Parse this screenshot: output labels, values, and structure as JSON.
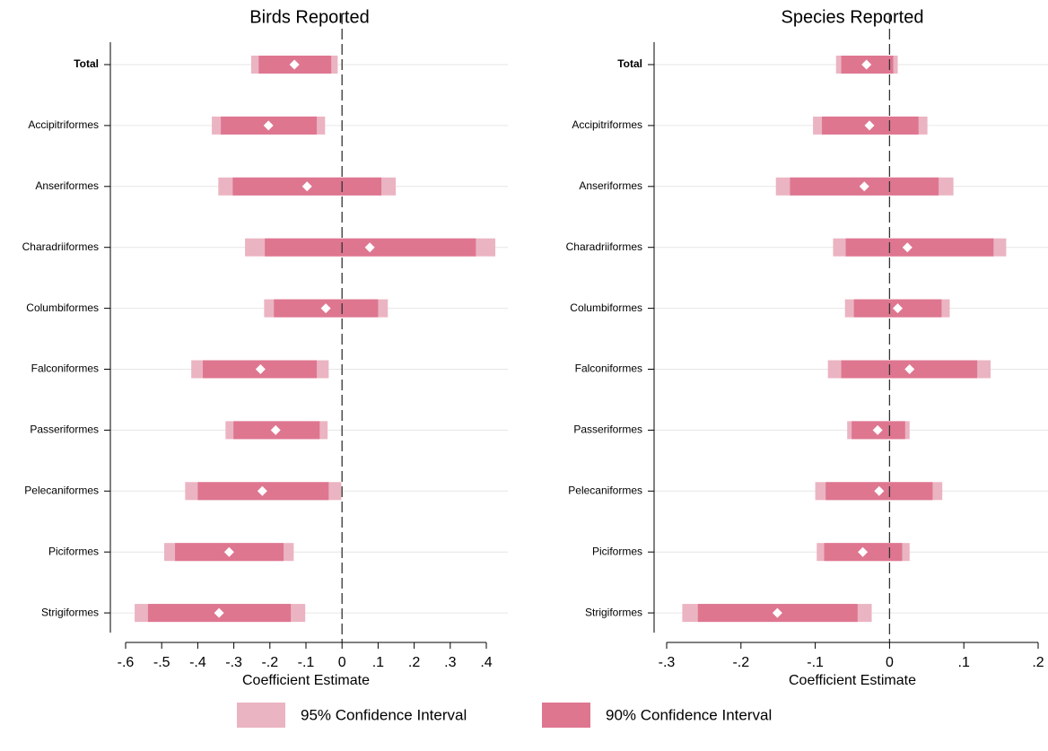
{
  "chart_data": [
    {
      "type": "coefplot",
      "title": "Birds Reported",
      "xlabel": "Coefficient Estimate",
      "categories": [
        "Total",
        "Accipitriformes",
        "Anseriformes",
        "Charadriiformes",
        "Columbiformes",
        "Falconiformes",
        "Passeriformes",
        "Pelecaniformes",
        "Piciformes",
        "Strigiformes"
      ],
      "estimates": [
        -0.132,
        -0.204,
        -0.097,
        0.077,
        -0.045,
        -0.226,
        -0.184,
        -0.221,
        -0.313,
        -0.341
      ],
      "series": [
        {
          "low": [
            -0.252,
            -0.361,
            -0.343,
            -0.269,
            -0.216,
            -0.418,
            -0.323,
            -0.435,
            -0.493,
            -0.575
          ],
          "high": [
            -0.012,
            -0.047,
            0.149,
            0.425,
            0.127,
            -0.037,
            -0.04,
            -0.002,
            -0.134,
            -0.102
          ]
        },
        {
          "low": [
            -0.231,
            -0.336,
            -0.303,
            -0.214,
            -0.189,
            -0.386,
            -0.301,
            -0.4,
            -0.463,
            -0.538
          ],
          "high": [
            -0.03,
            -0.07,
            0.109,
            0.371,
            0.1,
            -0.07,
            -0.062,
            -0.037,
            -0.162,
            -0.142
          ]
        }
      ],
      "xlim": [
        -0.6,
        0.4
      ],
      "xticks": [
        {
          "value": -0.6,
          "label": "-.6"
        },
        {
          "value": -0.5,
          "label": "-.5"
        },
        {
          "value": -0.4,
          "label": "-.4"
        },
        {
          "value": -0.3,
          "label": "-.3"
        },
        {
          "value": -0.2,
          "label": "-.2"
        },
        {
          "value": -0.1,
          "label": "-.1"
        },
        0,
        {
          "value": 0.1,
          "label": ".1"
        },
        {
          "value": 0.2,
          "label": ".2"
        },
        {
          "value": 0.3,
          "label": ".3"
        },
        {
          "value": 0.4,
          "label": ".4"
        }
      ],
      "reference_line": 0,
      "grid": true
    },
    {
      "type": "coefplot",
      "title": "Species Reported",
      "xlabel": "Coefficient Estimate",
      "categories": [
        "Total",
        "Accipitriformes",
        "Anseriformes",
        "Charadriiformes",
        "Columbiformes",
        "Falconiformes",
        "Passeriformes",
        "Pelecaniformes",
        "Piciformes",
        "Strigiformes"
      ],
      "estimates": [
        -0.031,
        -0.027,
        -0.034,
        0.024,
        0.011,
        0.027,
        -0.016,
        -0.014,
        -0.036,
        -0.151
      ],
      "series": [
        {
          "low": [
            -0.072,
            -0.103,
            -0.153,
            -0.076,
            -0.06,
            -0.083,
            -0.057,
            -0.1,
            -0.098,
            -0.279
          ],
          "high": [
            0.011,
            0.051,
            0.086,
            0.157,
            0.081,
            0.136,
            0.027,
            0.071,
            0.027,
            -0.024
          ]
        },
        {
          "low": [
            -0.065,
            -0.091,
            -0.134,
            -0.059,
            -0.048,
            -0.065,
            -0.051,
            -0.086,
            -0.088,
            -0.258
          ],
          "high": [
            0.005,
            0.039,
            0.066,
            0.14,
            0.07,
            0.118,
            0.021,
            0.058,
            0.017,
            -0.043
          ]
        }
      ],
      "xlim": [
        -0.3,
        0.2
      ],
      "xticks": [
        {
          "value": -0.3,
          "label": "-.3"
        },
        {
          "value": -0.2,
          "label": "-.2"
        },
        {
          "value": -0.1,
          "label": "-.1"
        },
        0,
        {
          "value": 0.1,
          "label": ".1"
        },
        {
          "value": 0.2,
          "label": ".2"
        }
      ],
      "reference_line": 0,
      "grid": true
    }
  ],
  "legend": [
    {
      "name": "95% Confidence Interval",
      "color": "#ebb4c2"
    },
    {
      "name": "90% Confidence Interval",
      "color": "#de7690"
    }
  ]
}
